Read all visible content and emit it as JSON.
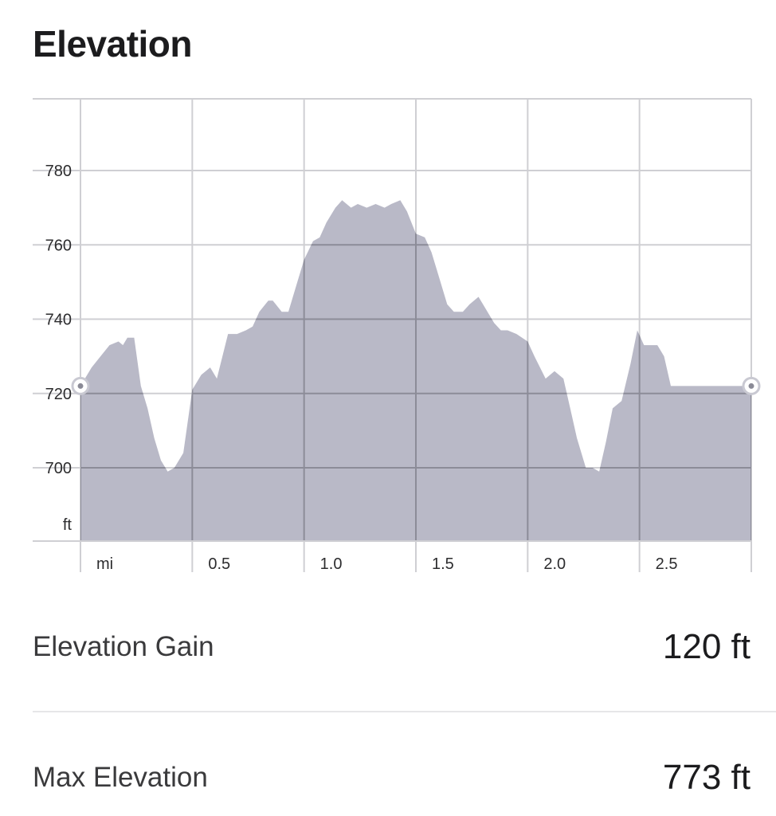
{
  "title": "Elevation",
  "colors": {
    "fill": "#b9b9c7",
    "grid": "#cfcfd3",
    "grid_over_fill": "#8c8c98",
    "axis_text": "#2c2c2e",
    "marker_stroke": "#c9c9d2"
  },
  "chart_data": {
    "type": "area",
    "x_unit_label": "mi",
    "y_unit_label": "ft",
    "xlim": [
      0,
      3.0
    ],
    "ylim": [
      680,
      800
    ],
    "x_ticks": [
      0,
      0.5,
      1.0,
      1.5,
      2.0,
      2.5,
      3.0
    ],
    "x_tick_labels": [
      "mi",
      "0.5",
      "1.0",
      "1.5",
      "2.0",
      "2.5"
    ],
    "y_ticks": [
      700,
      720,
      740,
      760,
      780
    ],
    "y_tick_labels": [
      "700",
      "720",
      "740",
      "760",
      "780"
    ],
    "grid": true,
    "start_marker": true,
    "end_marker": true,
    "x": [
      0.0,
      0.05,
      0.13,
      0.17,
      0.19,
      0.21,
      0.24,
      0.27,
      0.3,
      0.33,
      0.36,
      0.39,
      0.42,
      0.46,
      0.5,
      0.54,
      0.58,
      0.61,
      0.66,
      0.7,
      0.74,
      0.77,
      0.8,
      0.84,
      0.86,
      0.9,
      0.93,
      0.97,
      1.0,
      1.04,
      1.07,
      1.1,
      1.14,
      1.17,
      1.21,
      1.24,
      1.28,
      1.32,
      1.36,
      1.39,
      1.43,
      1.46,
      1.5,
      1.54,
      1.57,
      1.6,
      1.64,
      1.67,
      1.71,
      1.74,
      1.78,
      1.81,
      1.85,
      1.88,
      1.91,
      1.95,
      2.0,
      2.03,
      2.08,
      2.12,
      2.16,
      2.19,
      2.22,
      2.26,
      2.29,
      2.32,
      2.35,
      2.38,
      2.42,
      2.46,
      2.49,
      2.52,
      2.55,
      2.58,
      2.61,
      2.64,
      2.67,
      2.7,
      2.74,
      2.79,
      2.82,
      2.86,
      2.9,
      2.95,
      3.0
    ],
    "y": [
      722,
      727,
      733,
      734,
      733,
      735,
      735,
      722,
      716,
      708,
      702,
      699,
      700,
      704,
      721,
      725,
      727,
      724,
      736,
      736,
      737,
      738,
      742,
      745,
      745,
      742,
      742,
      750,
      756,
      761,
      762,
      766,
      770,
      772,
      770,
      771,
      770,
      771,
      770,
      771,
      772,
      769,
      763,
      762,
      758,
      752,
      744,
      742,
      742,
      744,
      746,
      743,
      739,
      737,
      737,
      736,
      734,
      730,
      724,
      726,
      724,
      716,
      708,
      700,
      700,
      699,
      707,
      716,
      718,
      728,
      737,
      733,
      733,
      733,
      730,
      722,
      722,
      722,
      722,
      722,
      722,
      722,
      722,
      722,
      722
    ]
  },
  "stats": [
    {
      "label": "Elevation Gain",
      "value": "120 ft"
    },
    {
      "label": "Max Elevation",
      "value": "773 ft"
    }
  ]
}
